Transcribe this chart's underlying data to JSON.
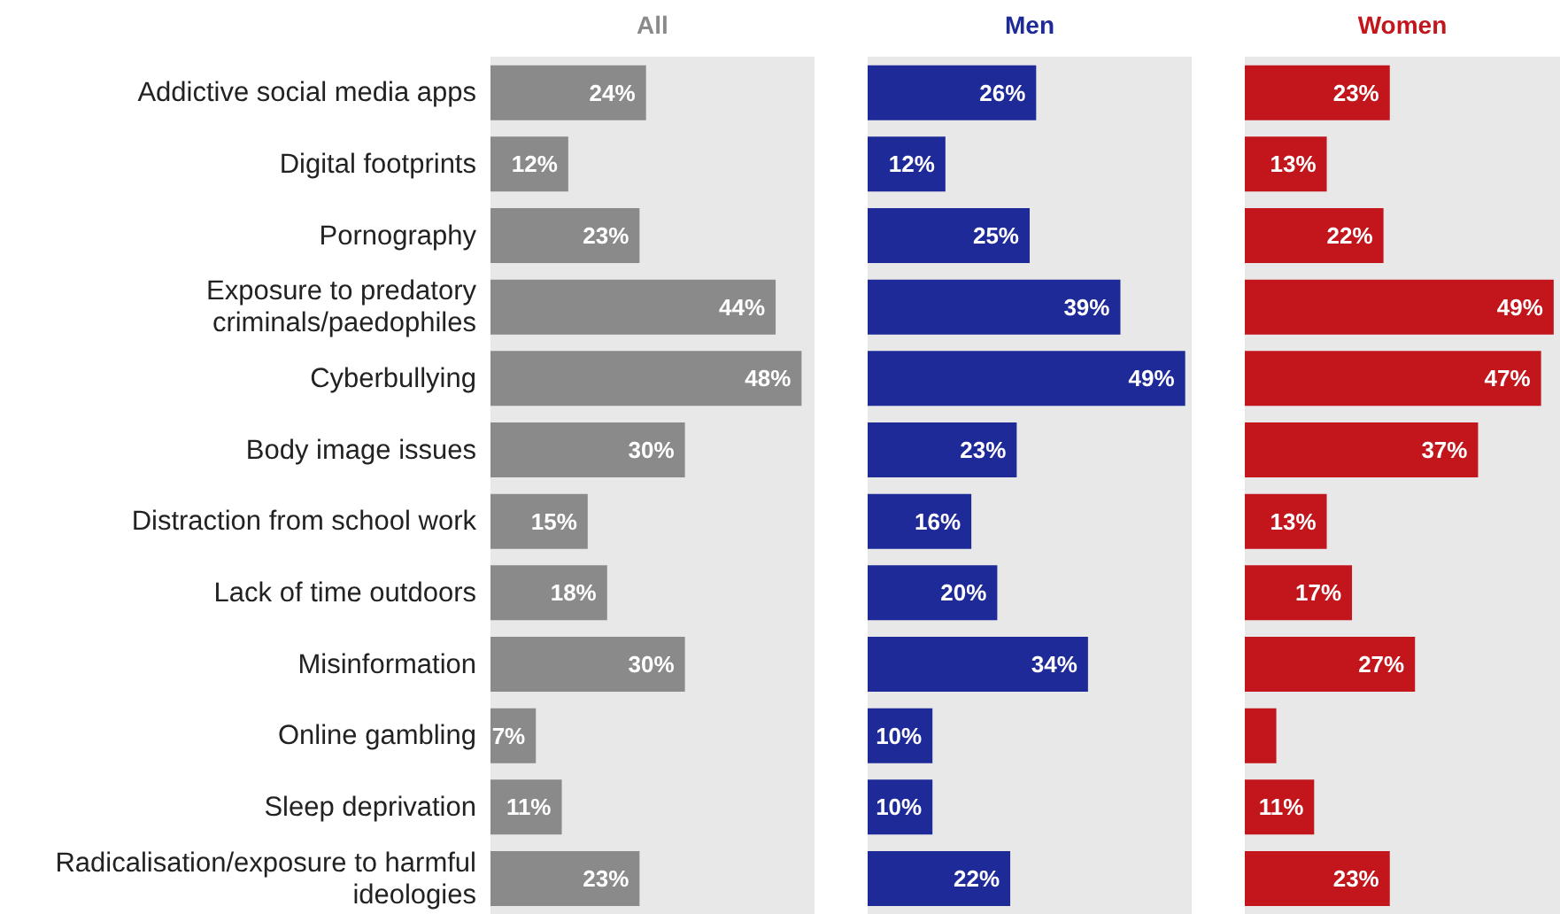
{
  "chart_data": [
    {
      "type": "bar",
      "orientation": "horizontal",
      "title": "All",
      "categories": [
        "Addictive social media apps",
        "Digital footprints",
        "Pornography",
        "Exposure to predatory criminals/paedophiles",
        "Cyberbullying",
        "Body image issues",
        "Distraction from school work",
        "Lack of time outdoors",
        "Misinformation",
        "Online gambling",
        "Sleep deprivation",
        "Radicalisation/exposure to harmful ideologies"
      ],
      "xlim": [
        0,
        50
      ],
      "tick_labels": "y",
      "series": [
        {
          "color": "#8a8a8a",
          "values": [
            24,
            12,
            23,
            44,
            48,
            30,
            15,
            18,
            30,
            7,
            11,
            23
          ],
          "value_labels": [
            "24%",
            "12%",
            "23%",
            "44%",
            "48%",
            "30%",
            "15%",
            "18%",
            "30%",
            "7%",
            "11%",
            "23%"
          ]
        }
      ]
    },
    {
      "type": "bar",
      "orientation": "horizontal",
      "title": "Men",
      "categories": [
        null,
        null,
        null,
        null,
        null,
        null,
        null,
        null,
        null,
        null,
        null,
        null
      ],
      "xlim": [
        0,
        50
      ],
      "tick_labels": false,
      "series": [
        {
          "color": "#1f2a99",
          "values": [
            26,
            12,
            25,
            39,
            49,
            23,
            16,
            20,
            34,
            10,
            10,
            22
          ],
          "value_labels": [
            "26%",
            "12%",
            "25%",
            "39%",
            "49%",
            "23%",
            "16%",
            "20%",
            "34%",
            "10%",
            "10%",
            "22%"
          ]
        }
      ]
    },
    {
      "type": "bar",
      "orientation": "horizontal",
      "title": "Women",
      "categories": [
        null,
        null,
        null,
        null,
        null,
        null,
        null,
        null,
        null,
        null,
        null,
        null
      ],
      "xlim": [
        0,
        50
      ],
      "tick_labels": false,
      "series": [
        {
          "color": "#c2161c",
          "values": [
            23,
            13,
            22,
            49,
            47,
            37,
            13,
            17,
            27,
            5,
            11,
            23
          ],
          "value_labels": [
            "23%",
            "13%",
            "22%",
            "49%",
            "47%",
            "37%",
            "13%",
            "17%",
            "27%",
            null,
            "11%",
            "23%"
          ]
        }
      ]
    }
  ]
}
